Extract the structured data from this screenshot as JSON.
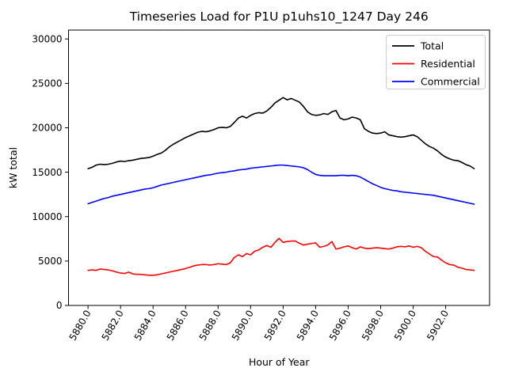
{
  "figure": {
    "background": "#ffffff",
    "text_color": "#000000"
  },
  "chart_data": {
    "type": "line",
    "title": "Timeseries Load for P1U p1uhs10_1247  Day 246",
    "xlabel": "Hour of Year",
    "ylabel": "kW total",
    "xlim": [
      5878.8,
      5904.7
    ],
    "ylim": [
      0,
      31000
    ],
    "grid": false,
    "x_ticks": [
      5880.0,
      5882.0,
      5884.0,
      5886.0,
      5888.0,
      5890.0,
      5892.0,
      5894.0,
      5896.0,
      5898.0,
      5900.0,
      5902.0
    ],
    "x_tick_labels": [
      "5880.0",
      "5882.0",
      "5884.0",
      "5886.0",
      "5888.0",
      "5890.0",
      "5892.0",
      "5894.0",
      "5896.0",
      "5898.0",
      "5900.0",
      "5902.0"
    ],
    "y_ticks": [
      0,
      5000,
      10000,
      15000,
      20000,
      25000,
      30000
    ],
    "y_tick_labels": [
      "0",
      "5000",
      "10000",
      "15000",
      "20000",
      "25000",
      "30000"
    ],
    "legend": {
      "position": "upper right",
      "entries": [
        "Total",
        "Residential",
        "Commercial"
      ]
    },
    "x_start": 5880.0,
    "x_step": 0.25,
    "x": [
      5880.0,
      5880.25,
      5880.5,
      5880.75,
      5881.0,
      5881.25,
      5881.5,
      5881.75,
      5882.0,
      5882.25,
      5882.5,
      5882.75,
      5883.0,
      5883.25,
      5883.5,
      5883.75,
      5884.0,
      5884.25,
      5884.5,
      5884.75,
      5885.0,
      5885.25,
      5885.5,
      5885.75,
      5886.0,
      5886.25,
      5886.5,
      5886.75,
      5887.0,
      5887.25,
      5887.5,
      5887.75,
      5888.0,
      5888.25,
      5888.5,
      5888.75,
      5889.0,
      5889.25,
      5889.5,
      5889.75,
      5890.0,
      5890.25,
      5890.5,
      5890.75,
      5891.0,
      5891.25,
      5891.5,
      5891.75,
      5892.0,
      5892.25,
      5892.5,
      5892.75,
      5893.0,
      5893.25,
      5893.5,
      5893.75,
      5894.0,
      5894.25,
      5894.5,
      5894.75,
      5895.0,
      5895.25,
      5895.5,
      5895.75,
      5896.0,
      5896.25,
      5896.5,
      5896.75,
      5897.0,
      5897.25,
      5897.5,
      5897.75,
      5898.0,
      5898.25,
      5898.5,
      5898.75,
      5899.0,
      5899.25,
      5899.5,
      5899.75,
      5900.0,
      5900.25,
      5900.5,
      5900.75,
      5901.0,
      5901.25,
      5901.5,
      5901.75,
      5902.0,
      5902.25,
      5902.5,
      5902.75,
      5903.0,
      5903.25,
      5903.5,
      5903.75
    ],
    "series": [
      {
        "name": "Total",
        "color": "#000000",
        "values": [
          15400,
          15550,
          15800,
          15900,
          15850,
          15900,
          16000,
          16150,
          16250,
          16200,
          16300,
          16350,
          16450,
          16550,
          16600,
          16650,
          16800,
          17000,
          17150,
          17450,
          17850,
          18150,
          18400,
          18650,
          18900,
          19100,
          19300,
          19500,
          19600,
          19550,
          19650,
          19800,
          20000,
          20050,
          20000,
          20150,
          20600,
          21100,
          21300,
          21100,
          21400,
          21600,
          21700,
          21650,
          21900,
          22300,
          22800,
          23100,
          23400,
          23150,
          23300,
          23100,
          22900,
          22400,
          21800,
          21500,
          21400,
          21450,
          21600,
          21500,
          21800,
          21950,
          21100,
          20900,
          21000,
          21200,
          21100,
          20900,
          19900,
          19600,
          19400,
          19350,
          19400,
          19550,
          19200,
          19100,
          19000,
          18950,
          19000,
          19100,
          19200,
          19000,
          18600,
          18200,
          17900,
          17700,
          17400,
          17000,
          16700,
          16500,
          16350,
          16300,
          16100,
          15850,
          15700,
          15400
        ]
      },
      {
        "name": "Residential",
        "color": "#ff0000",
        "values": [
          3950,
          4000,
          3950,
          4100,
          4050,
          4000,
          3900,
          3750,
          3650,
          3600,
          3750,
          3550,
          3500,
          3500,
          3450,
          3400,
          3400,
          3450,
          3550,
          3650,
          3750,
          3850,
          3950,
          4050,
          4150,
          4300,
          4450,
          4550,
          4600,
          4600,
          4550,
          4600,
          4700,
          4650,
          4600,
          4800,
          5400,
          5700,
          5500,
          5850,
          5700,
          6100,
          6250,
          6550,
          6750,
          6550,
          7100,
          7550,
          7100,
          7200,
          7250,
          7250,
          7000,
          6800,
          6900,
          6970,
          7050,
          6550,
          6650,
          6800,
          7200,
          6350,
          6450,
          6600,
          6700,
          6500,
          6350,
          6600,
          6450,
          6400,
          6450,
          6500,
          6450,
          6400,
          6350,
          6450,
          6600,
          6650,
          6600,
          6700,
          6550,
          6650,
          6500,
          6100,
          5800,
          5500,
          5450,
          5100,
          4800,
          4600,
          4550,
          4300,
          4200,
          4050,
          4000,
          3950
        ]
      },
      {
        "name": "Commercial",
        "color": "#0000ff",
        "values": [
          11450,
          11600,
          11750,
          11900,
          12050,
          12150,
          12300,
          12400,
          12500,
          12600,
          12700,
          12800,
          12900,
          13000,
          13100,
          13150,
          13250,
          13400,
          13550,
          13650,
          13750,
          13850,
          13950,
          14050,
          14150,
          14250,
          14350,
          14450,
          14550,
          14650,
          14700,
          14800,
          14900,
          14950,
          15000,
          15100,
          15150,
          15250,
          15300,
          15350,
          15450,
          15500,
          15550,
          15600,
          15650,
          15700,
          15750,
          15800,
          15800,
          15750,
          15700,
          15650,
          15600,
          15500,
          15300,
          15000,
          14750,
          14650,
          14600,
          14600,
          14600,
          14600,
          14650,
          14650,
          14600,
          14650,
          14600,
          14450,
          14200,
          13950,
          13700,
          13500,
          13300,
          13150,
          13050,
          12950,
          12900,
          12800,
          12750,
          12700,
          12650,
          12600,
          12550,
          12500,
          12450,
          12400,
          12300,
          12200,
          12100,
          12000,
          11900,
          11800,
          11700,
          11600,
          11500,
          11400
        ]
      }
    ]
  }
}
